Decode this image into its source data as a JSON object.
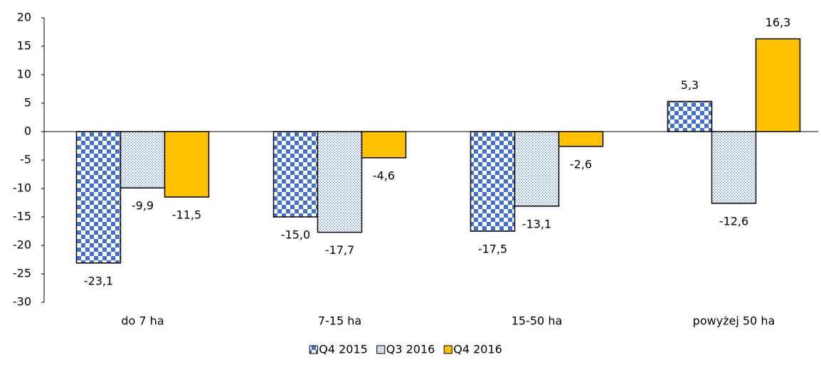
{
  "chart_data": {
    "type": "bar",
    "categories": [
      "do 7 ha",
      "7-15 ha",
      "15-50 ha",
      "powyżej 50 ha"
    ],
    "series": [
      {
        "name": "Q4 2015",
        "color": "#4472c4",
        "fill": "checker",
        "values": [
          -23.1,
          -15.0,
          -17.5,
          5.3
        ],
        "value_labels": [
          "-23,1",
          "-15,0",
          "-17,5",
          "5,3"
        ]
      },
      {
        "name": "Q3 2016",
        "color": "#4472c4",
        "fill": "dots",
        "values": [
          -9.9,
          -17.7,
          -13.1,
          -12.6
        ],
        "value_labels": [
          "-9,9",
          "-17,7",
          "-13,1",
          "-12,6"
        ]
      },
      {
        "name": "Q4 2016",
        "color": "#ffc000",
        "fill": "solid",
        "values": [
          -11.5,
          -4.6,
          -2.6,
          16.3
        ],
        "value_labels": [
          "-11,5",
          "-4,6",
          "-2,6",
          "16,3"
        ]
      }
    ],
    "ylim": [
      -30,
      20
    ],
    "yticks": [
      -30,
      -25,
      -20,
      -15,
      -10,
      -5,
      0,
      5,
      10,
      15,
      20
    ],
    "grid": false,
    "legend": "bottom"
  }
}
